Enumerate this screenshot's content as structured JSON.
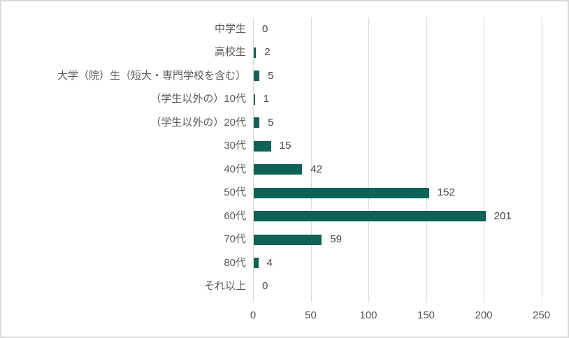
{
  "chart": {
    "background": "#ffffff",
    "frame_border_color": "#d9d9d9"
  },
  "chart_data": {
    "type": "bar",
    "orientation": "horizontal",
    "title": "",
    "xlabel": "",
    "ylabel": "",
    "categories": [
      "中学生",
      "高校生",
      "大学（院）生（短大・専門学校を含む）",
      "（学生以外の）10代",
      "（学生以外の）20代",
      "30代",
      "40代",
      "50代",
      "60代",
      "70代",
      "80代",
      "それ以上"
    ],
    "values": [
      0,
      2,
      5,
      1,
      5,
      15,
      42,
      152,
      201,
      59,
      4,
      0
    ],
    "data_labels": [
      0,
      2,
      5,
      1,
      5,
      15,
      42,
      152,
      201,
      59,
      4,
      0
    ],
    "x_ticks": [
      0,
      50,
      100,
      150,
      200,
      250
    ],
    "xlim": [
      0,
      250
    ],
    "grid": true,
    "legend": false,
    "bar_color": "#0e6258",
    "gridline_color": "#d9d9d9",
    "category_label_color": "#595959",
    "tick_label_color": "#595959",
    "value_label_color": "#444444"
  }
}
